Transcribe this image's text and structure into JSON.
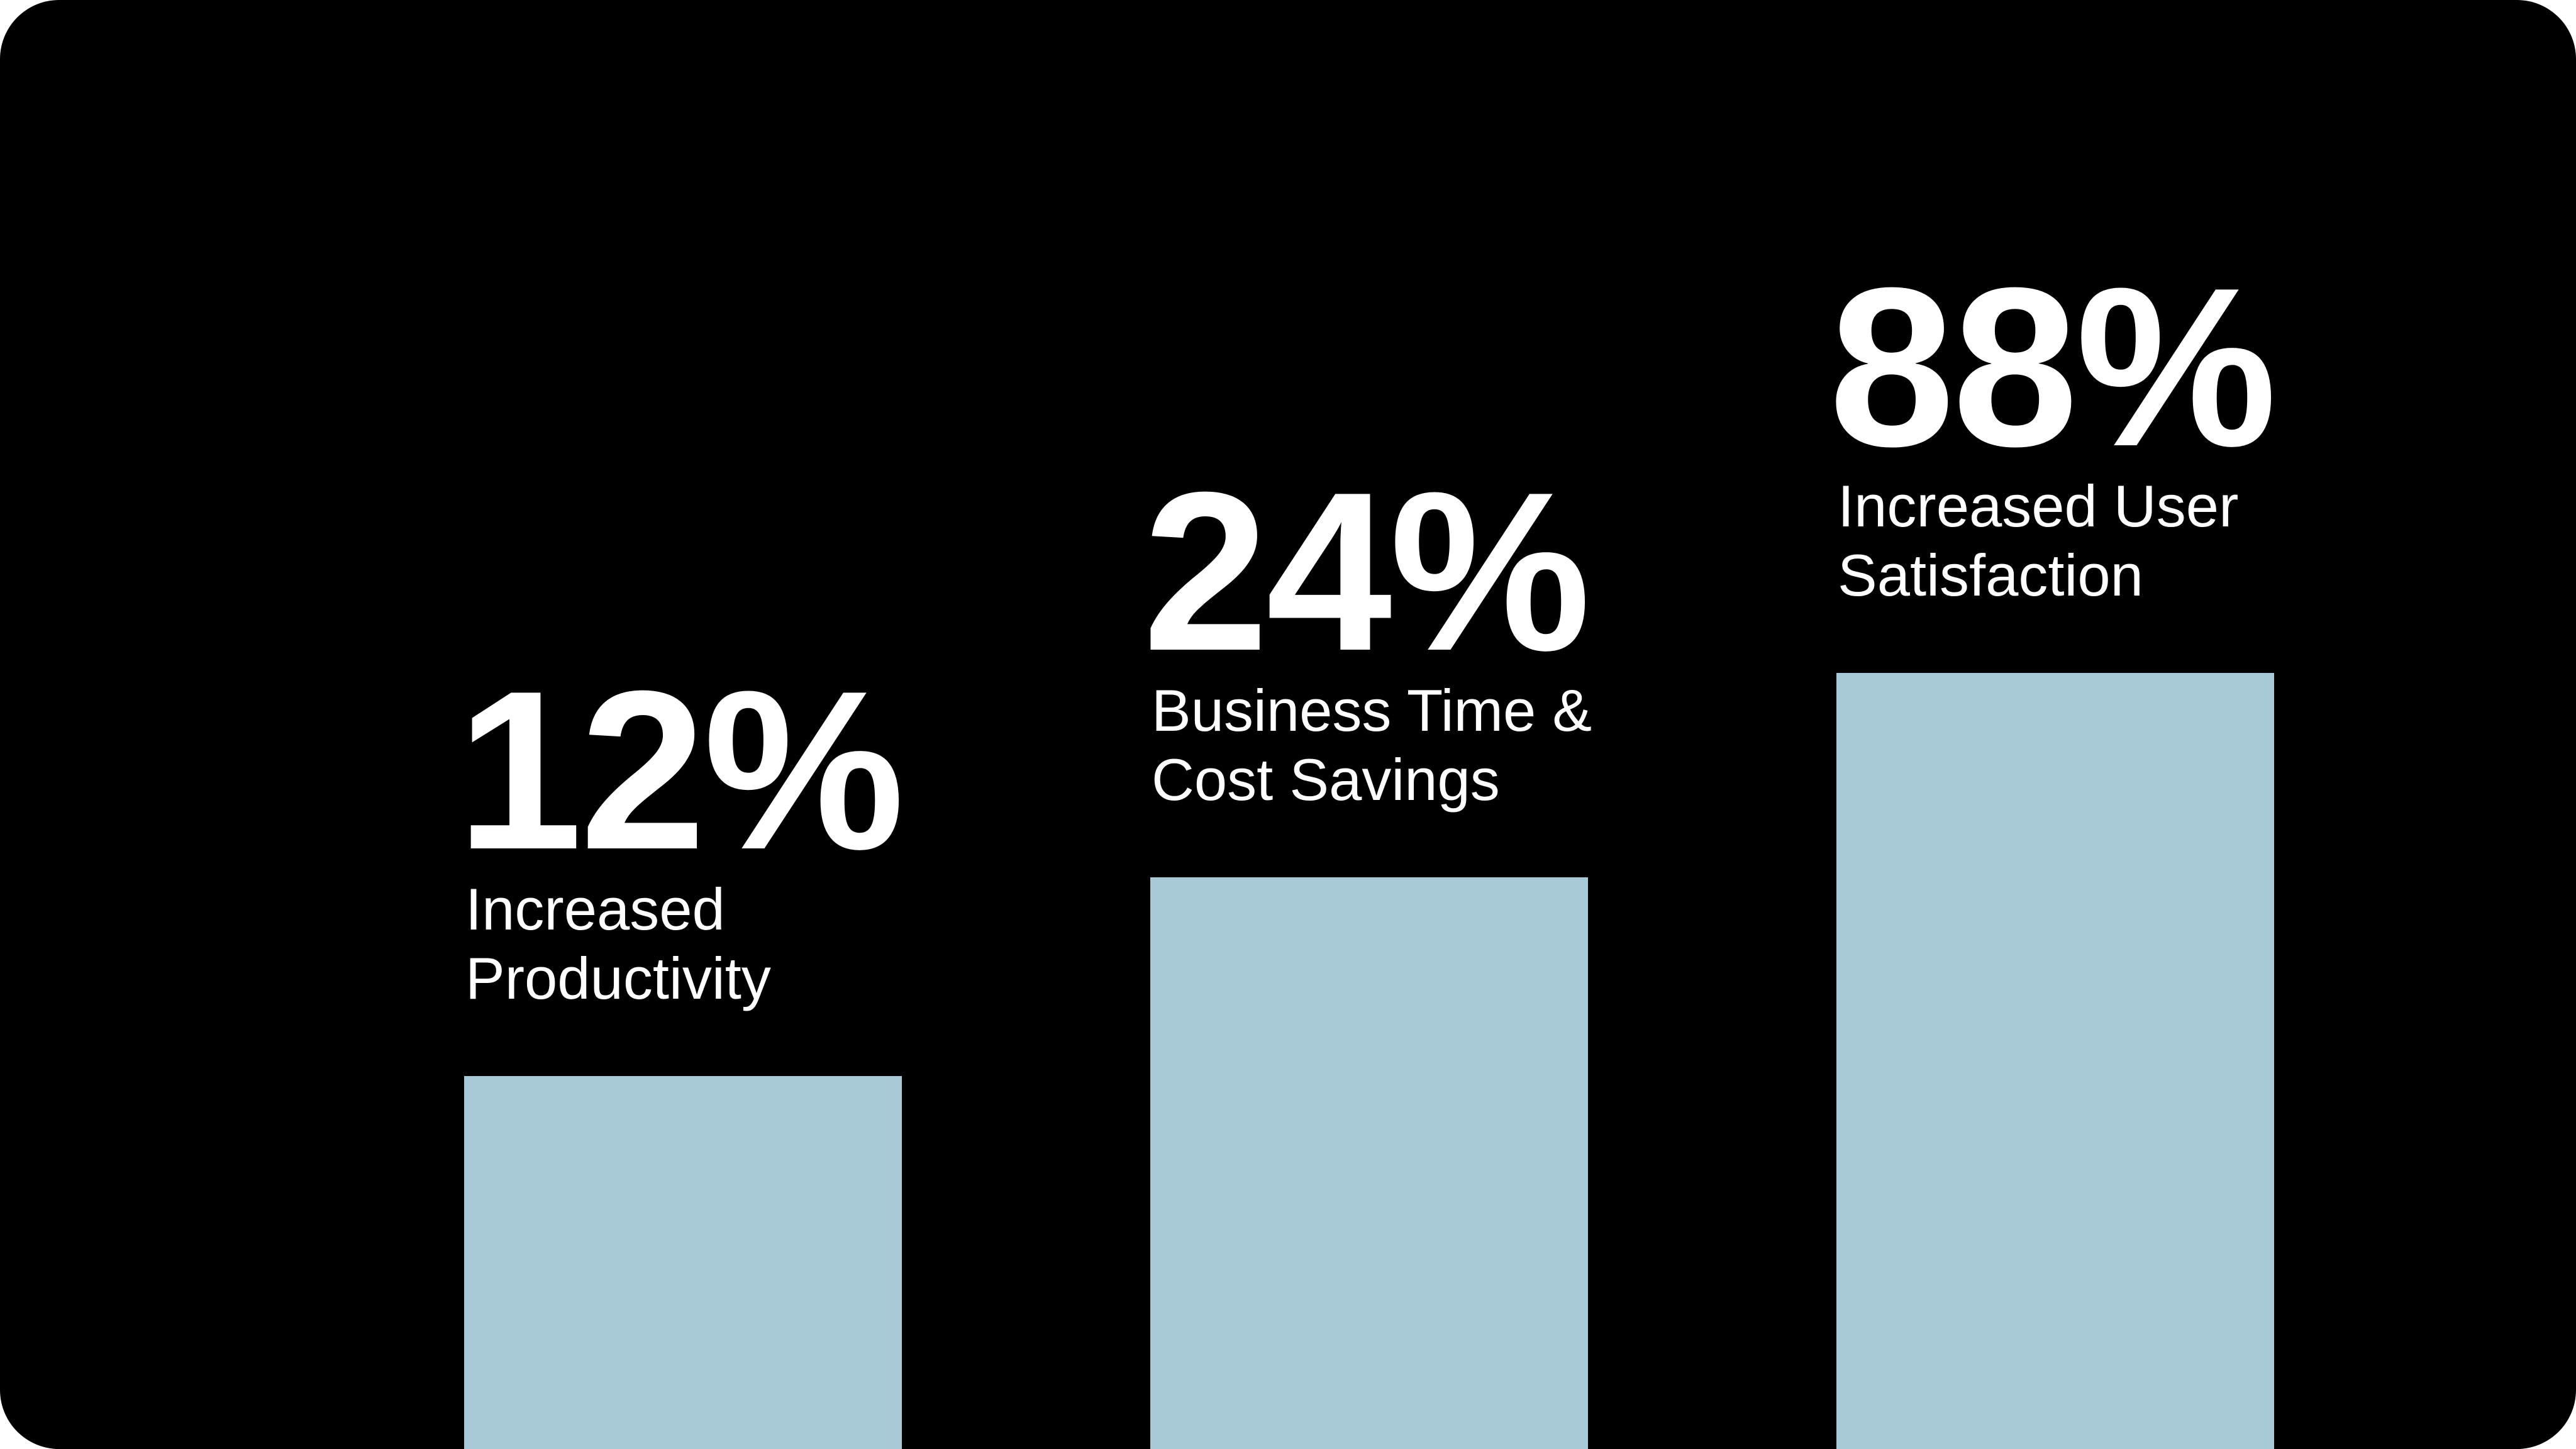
{
  "colors": {
    "background": "#000000",
    "bar": "#a7c9d8",
    "text": "#ffffff"
  },
  "chart_data": {
    "type": "bar",
    "categories": [
      "Increased Productivity",
      "Business Time & Cost Savings",
      "Increased User Satisfaction"
    ],
    "values": [
      12,
      24,
      88
    ],
    "unit": "%",
    "value_labels": [
      "12%",
      "24%",
      "88%"
    ],
    "label_lines": [
      [
        "Increased",
        "Productivity"
      ],
      [
        "Business Time &",
        "Cost Savings"
      ],
      [
        "Increased User",
        "Satisfaction"
      ]
    ],
    "title": "",
    "xlabel": "",
    "ylabel": "",
    "grid": false
  }
}
